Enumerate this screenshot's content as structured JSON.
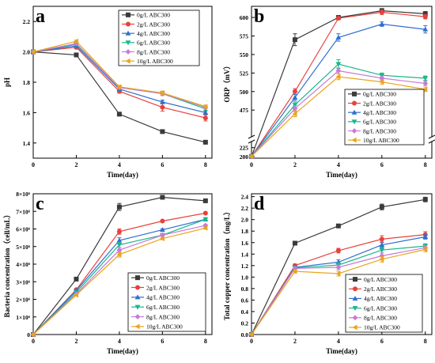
{
  "figure": {
    "series_colors": [
      "#3a3a3a",
      "#e8413a",
      "#2f6fd0",
      "#18b889",
      "#c879d8",
      "#eaa51c"
    ],
    "series_markers": [
      "square",
      "circle",
      "triangle-up",
      "triangle-down",
      "diamond",
      "triangle-left"
    ]
  },
  "chart_data": [
    {
      "panel_label": "a",
      "type": "line",
      "title": "",
      "xlabel": "Time(day)",
      "ylabel": "pH",
      "xlim": [
        0,
        8.3
      ],
      "ylim": [
        1.3,
        2.3
      ],
      "xticks": [
        0,
        2,
        4,
        6,
        8
      ],
      "yticks": [
        1.4,
        1.6,
        1.8,
        2.0,
        2.2
      ],
      "ytick_labels": [
        "1.4",
        "1.6",
        "1.8",
        "2.0",
        "2.2"
      ],
      "legend": "top-right",
      "x": [
        0,
        2,
        4,
        6,
        8
      ],
      "series": [
        {
          "name": "0g/L ABC300",
          "values": [
            2.0,
            1.98,
            1.59,
            1.475,
            1.405
          ],
          "err": [
            0,
            0.012,
            0.005,
            0.004,
            0.004
          ]
        },
        {
          "name": "2g/L ABC300",
          "values": [
            2.0,
            2.03,
            1.74,
            1.635,
            1.565
          ],
          "err": [
            0,
            0.01,
            0.012,
            0.025,
            0.02
          ]
        },
        {
          "name": "4g/L ABC300",
          "values": [
            2.0,
            2.04,
            1.755,
            1.67,
            1.6
          ],
          "err": [
            0,
            0.01,
            0.01,
            0.012,
            0.01
          ]
        },
        {
          "name": "6g/L ABC300",
          "values": [
            2.0,
            2.05,
            1.765,
            1.725,
            1.625
          ],
          "err": [
            0,
            0.008,
            0.01,
            0.012,
            0.01
          ]
        },
        {
          "name": "8g/L ABC300",
          "values": [
            2.0,
            2.055,
            1.765,
            1.725,
            1.635
          ],
          "err": [
            0,
            0.008,
            0.01,
            0.012,
            0.01
          ]
        },
        {
          "name": "10g/L ABC300",
          "values": [
            2.0,
            2.07,
            1.77,
            1.73,
            1.64
          ],
          "err": [
            0,
            0.008,
            0.01,
            0.012,
            0.01
          ]
        }
      ]
    },
    {
      "panel_label": "b",
      "type": "line",
      "title": "",
      "xlabel": "Time(day)",
      "ylabel": "ORP（mV）",
      "xlim": [
        0,
        8.3
      ],
      "ylim_lower": [
        195,
        240
      ],
      "ylim_upper": [
        440,
        615
      ],
      "axis_break": true,
      "xticks": [
        0,
        2,
        4,
        6,
        8
      ],
      "yticks": [
        200,
        225,
        475,
        500,
        525,
        550,
        575,
        600
      ],
      "ytick_labels": [
        "200",
        "225",
        "475",
        "500",
        "525",
        "550",
        "575",
        "600"
      ],
      "legend": "bottom-right",
      "x": [
        0,
        2,
        4,
        6,
        8
      ],
      "series": [
        {
          "name": "0g/L ABC300",
          "values": [
            200,
            570,
            600,
            609,
            605
          ],
          "err": [
            0,
            8,
            2,
            3,
            3
          ]
        },
        {
          "name": "2g/L ABC300",
          "values": [
            200,
            500,
            599,
            607,
            601
          ],
          "err": [
            0,
            4,
            2,
            3,
            3
          ]
        },
        {
          "name": "4g/L ABC300",
          "values": [
            200,
            492,
            573,
            591,
            584
          ],
          "err": [
            0,
            4,
            5,
            3,
            5
          ]
        },
        {
          "name": "6g/L ABC300",
          "values": [
            200,
            482,
            537,
            522,
            518
          ],
          "err": [
            0,
            4,
            6,
            3,
            3
          ]
        },
        {
          "name": "8g/L ABC300",
          "values": [
            200,
            477,
            528,
            518,
            511
          ],
          "err": [
            0,
            4,
            4,
            3,
            3
          ]
        },
        {
          "name": "10g/L ABC300",
          "values": [
            200,
            470,
            520,
            513,
            503
          ],
          "err": [
            0,
            4,
            4,
            3,
            3
          ]
        }
      ]
    },
    {
      "panel_label": "c",
      "type": "line",
      "title": "",
      "xlabel": "Time(day)",
      "ylabel": "Bacteria concentration（cell/mL）",
      "xlim": [
        0,
        8.3
      ],
      "ylim": [
        0,
        8000000
      ],
      "xticks": [
        0,
        2,
        4,
        6,
        8
      ],
      "yticks": [
        0,
        1000000,
        2000000,
        3000000,
        4000000,
        5000000,
        6000000,
        7000000,
        8000000
      ],
      "ytick_labels": [
        "0",
        "1×10⁶",
        "2×10⁶",
        "3×10⁶",
        "4×10⁶",
        "5×10⁶",
        "6×10⁶",
        "7×10⁶",
        "8×10⁶"
      ],
      "legend": "bottom-right",
      "x": [
        0,
        2,
        4,
        6,
        8
      ],
      "series": [
        {
          "name": "0g/L ABC300",
          "values": [
            0,
            3150000,
            7250000,
            7800000,
            7600000
          ],
          "err": [
            0,
            60000,
            200000,
            80000,
            60000
          ]
        },
        {
          "name": "2g/L ABC300",
          "values": [
            0,
            2550000,
            5850000,
            6450000,
            6900000
          ],
          "err": [
            0,
            60000,
            150000,
            60000,
            60000
          ]
        },
        {
          "name": "4g/L ABC300",
          "values": [
            0,
            2500000,
            5350000,
            5950000,
            6550000
          ],
          "err": [
            0,
            60000,
            150000,
            60000,
            60000
          ]
        },
        {
          "name": "6g/L ABC300",
          "values": [
            0,
            2400000,
            5100000,
            5650000,
            6550000
          ],
          "err": [
            0,
            60000,
            150000,
            60000,
            60000
          ]
        },
        {
          "name": "8g/L ABC300",
          "values": [
            0,
            2300000,
            4800000,
            5650000,
            6200000
          ],
          "err": [
            0,
            60000,
            150000,
            60000,
            60000
          ]
        },
        {
          "name": "10g/L ABC300",
          "values": [
            0,
            2250000,
            4550000,
            5450000,
            6050000
          ],
          "err": [
            0,
            60000,
            150000,
            60000,
            60000
          ]
        }
      ]
    },
    {
      "panel_label": "d",
      "type": "line",
      "title": "",
      "xlabel": "Time(day)",
      "ylabel": "Total copper concentration（mg/L）",
      "xlim": [
        0,
        8.3
      ],
      "ylim": [
        0,
        2.45
      ],
      "xticks": [
        0,
        2,
        4,
        6,
        8
      ],
      "yticks": [
        0,
        0.2,
        0.4,
        0.6,
        0.8,
        1.0,
        1.2,
        1.4,
        1.6,
        1.8,
        2.0,
        2.2,
        2.4
      ],
      "ytick_labels": [
        "0.0",
        "0.2",
        "0.4",
        "0.6",
        "0.8",
        "1.0",
        "1.2",
        "1.4",
        "1.6",
        "1.8",
        "2.0",
        "2.2",
        "2.4"
      ],
      "legend": "bottom-right",
      "x": [
        0,
        2,
        4,
        6,
        8
      ],
      "series": [
        {
          "name": "0g/L ABC300",
          "values": [
            0,
            1.59,
            1.89,
            2.22,
            2.35
          ],
          "err": [
            0,
            0.02,
            0.03,
            0.05,
            0.04
          ]
        },
        {
          "name": "2g/L ABC300",
          "values": [
            0,
            1.2,
            1.46,
            1.66,
            1.74
          ],
          "err": [
            0,
            0.03,
            0.04,
            0.06,
            0.05
          ]
        },
        {
          "name": "4g/L ABC300",
          "values": [
            0,
            1.17,
            1.26,
            1.56,
            1.7
          ],
          "err": [
            0,
            0.03,
            0.04,
            0.05,
            0.04
          ]
        },
        {
          "name": "6g/L ABC300",
          "values": [
            0,
            1.16,
            1.21,
            1.47,
            1.54
          ],
          "err": [
            0,
            0.03,
            0.04,
            0.05,
            0.04
          ]
        },
        {
          "name": "8g/L ABC300",
          "values": [
            0,
            1.15,
            1.17,
            1.37,
            1.51
          ],
          "err": [
            0,
            0.03,
            0.04,
            0.05,
            0.04
          ]
        },
        {
          "name": "10g/L ABC300",
          "values": [
            0,
            1.1,
            1.06,
            1.31,
            1.48
          ],
          "err": [
            0,
            0.03,
            0.04,
            0.05,
            0.04
          ]
        }
      ]
    }
  ]
}
